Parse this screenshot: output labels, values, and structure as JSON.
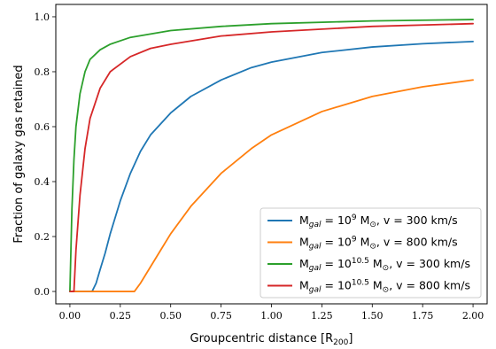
{
  "chart_data": {
    "type": "line",
    "title": "",
    "xlabel": "Groupcentric distance [R",
    "xlabel_sub": "200",
    "xlabel_end": "]",
    "ylabel": "Fraction of galaxy gas retained",
    "xlim": [
      -0.07,
      2.07
    ],
    "ylim": [
      -0.045,
      1.045
    ],
    "x_ticks": [
      0.0,
      0.25,
      0.5,
      0.75,
      1.0,
      1.25,
      1.5,
      1.75,
      2.0
    ],
    "x_tick_labels": [
      "0.00",
      "0.25",
      "0.50",
      "0.75",
      "1.00",
      "1.25",
      "1.50",
      "1.75",
      "2.00"
    ],
    "y_ticks": [
      0.0,
      0.2,
      0.4,
      0.6,
      0.8,
      1.0
    ],
    "y_tick_labels": [
      "0.0",
      "0.2",
      "0.4",
      "0.6",
      "0.8",
      "1.0"
    ],
    "grid": false,
    "legend_position": "lower-right",
    "series": [
      {
        "label": {
          "pre": "M",
          "sub": "gal",
          "mid": " = 10",
          "sup": "9",
          "post": " M",
          "sun": "⊙",
          "tail": ", v = 300 km/s"
        },
        "color": "#1f77b4",
        "x": [
          0.0,
          0.11,
          0.13,
          0.15,
          0.175,
          0.2,
          0.25,
          0.3,
          0.35,
          0.4,
          0.5,
          0.6,
          0.75,
          0.9,
          1.0,
          1.25,
          1.5,
          1.75,
          2.0
        ],
        "y": [
          0.0,
          0.0,
          0.03,
          0.08,
          0.14,
          0.21,
          0.33,
          0.43,
          0.51,
          0.57,
          0.65,
          0.71,
          0.77,
          0.815,
          0.835,
          0.87,
          0.89,
          0.902,
          0.91
        ]
      },
      {
        "label": {
          "pre": "M",
          "sub": "gal",
          "mid": " = 10",
          "sup": "9",
          "post": " M",
          "sun": "⊙",
          "tail": ", v = 800 km/s"
        },
        "color": "#ff7f0e",
        "x": [
          0.0,
          0.32,
          0.35,
          0.4,
          0.45,
          0.5,
          0.6,
          0.75,
          0.9,
          1.0,
          1.25,
          1.5,
          1.75,
          2.0
        ],
        "y": [
          0.0,
          0.0,
          0.03,
          0.09,
          0.15,
          0.21,
          0.31,
          0.43,
          0.52,
          0.57,
          0.655,
          0.71,
          0.745,
          0.77
        ]
      },
      {
        "label": {
          "pre": "M",
          "sub": "gal",
          "mid": " = 10",
          "sup": "10.5",
          "post": " M",
          "sun": "⊙",
          "tail": ", v = 300 km/s"
        },
        "color": "#2ca02c",
        "x": [
          0.0,
          0.005,
          0.01,
          0.02,
          0.03,
          0.05,
          0.075,
          0.1,
          0.15,
          0.2,
          0.3,
          0.5,
          0.75,
          1.0,
          1.5,
          2.0
        ],
        "y": [
          0.0,
          0.15,
          0.3,
          0.48,
          0.6,
          0.72,
          0.8,
          0.845,
          0.88,
          0.9,
          0.925,
          0.95,
          0.965,
          0.975,
          0.985,
          0.99
        ]
      },
      {
        "label": {
          "pre": "M",
          "sub": "gal",
          "mid": " = 10",
          "sup": "10.5",
          "post": " M",
          "sun": "⊙",
          "tail": ", v = 800 km/s"
        },
        "color": "#d62728",
        "x": [
          0.0,
          0.02,
          0.03,
          0.05,
          0.075,
          0.1,
          0.15,
          0.2,
          0.3,
          0.4,
          0.5,
          0.75,
          1.0,
          1.5,
          2.0
        ],
        "y": [
          0.0,
          0.0,
          0.15,
          0.35,
          0.52,
          0.63,
          0.74,
          0.8,
          0.855,
          0.885,
          0.9,
          0.93,
          0.945,
          0.965,
          0.975
        ]
      }
    ]
  }
}
